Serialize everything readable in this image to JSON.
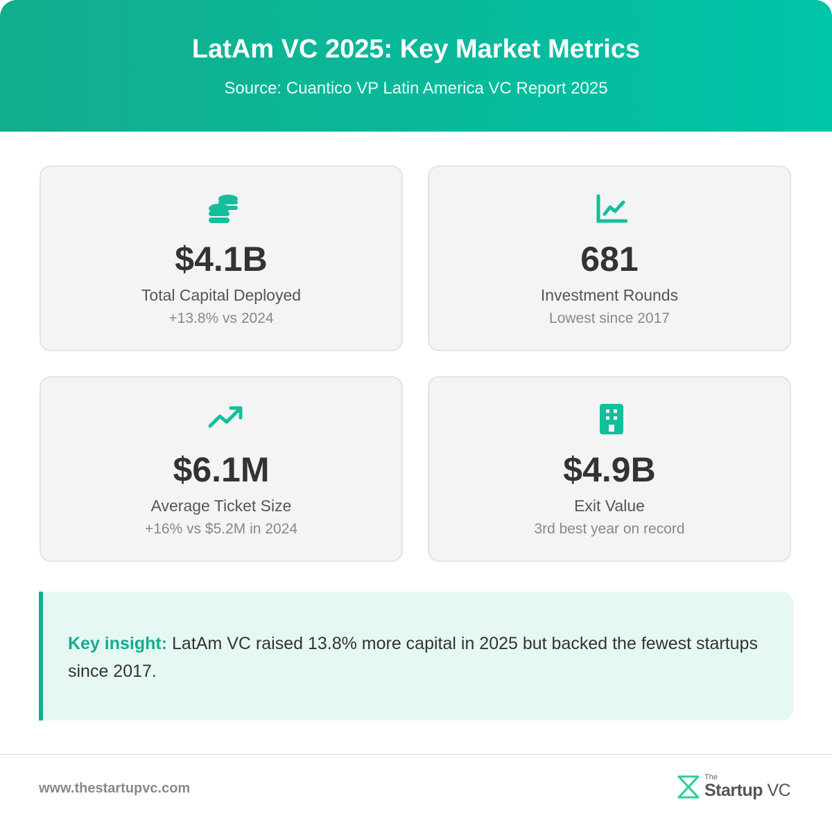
{
  "header": {
    "title": "LatAm VC 2025: Key Market Metrics",
    "subtitle": "Source: Cuantico VP Latin America VC Report 2025"
  },
  "cards": [
    {
      "value": "$4.1B",
      "label": "Total Capital Deployed",
      "note": "+13.8% vs 2024"
    },
    {
      "value": "681",
      "label": "Investment Rounds",
      "note": "Lowest since 2017"
    },
    {
      "value": "$6.1M",
      "label": "Average Ticket Size",
      "note": "+16% vs $5.2M in 2024"
    },
    {
      "value": "$4.9B",
      "label": "Exit Value",
      "note": "3rd best year on record"
    }
  ],
  "insight": {
    "label": "Key insight:",
    "text": "LatAm VC raised 13.8% more capital in 2025 but backed the fewest startups since 2017."
  },
  "footer": {
    "url": "www.thestartupvc.com",
    "logo": {
      "small": "The",
      "brand": "Startup",
      "suffix": "VC"
    }
  }
}
